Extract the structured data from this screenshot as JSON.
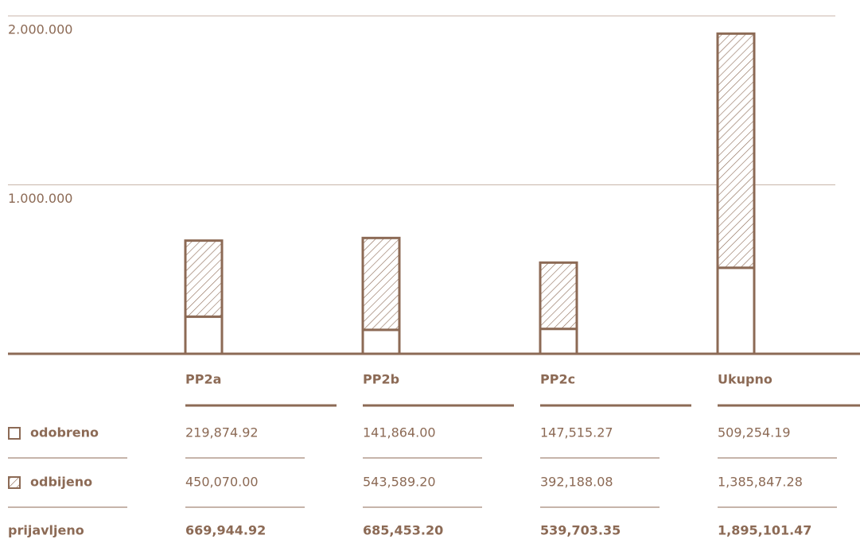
{
  "chart_data": {
    "type": "bar",
    "stacked": true,
    "categories": [
      "PP2a",
      "PP2b",
      "PP2c",
      "Ukupno"
    ],
    "series": [
      {
        "name": "odobreno",
        "color": "#8c6a55",
        "values": [
          219874.92,
          141864.0,
          147515.27,
          509254.19
        ],
        "value_labels": [
          "219,874.92",
          "141,864.00",
          "147,515.27",
          "509,254.19"
        ]
      },
      {
        "name": "odbijeno",
        "color": "#8c6a55",
        "hatch": true,
        "values": [
          450070.0,
          543589.2,
          392188.08,
          1385847.28
        ],
        "value_labels": [
          "450,070.00",
          "543,589.20",
          "392,188.08",
          "1,385,847.28"
        ]
      }
    ],
    "totals": {
      "name": "prijavljeno",
      "values": [
        669944.92,
        685453.2,
        539703.35,
        1895101.47
      ],
      "value_labels": [
        "669,944.92",
        "685,453.20",
        "539,703.35",
        "1,895,101.47"
      ]
    },
    "ylim": [
      0,
      2000000
    ],
    "yticks": [
      {
        "value": 1000000,
        "label": "1.000.000"
      },
      {
        "value": 2000000,
        "label": "2.000.000"
      }
    ],
    "grid": true
  }
}
